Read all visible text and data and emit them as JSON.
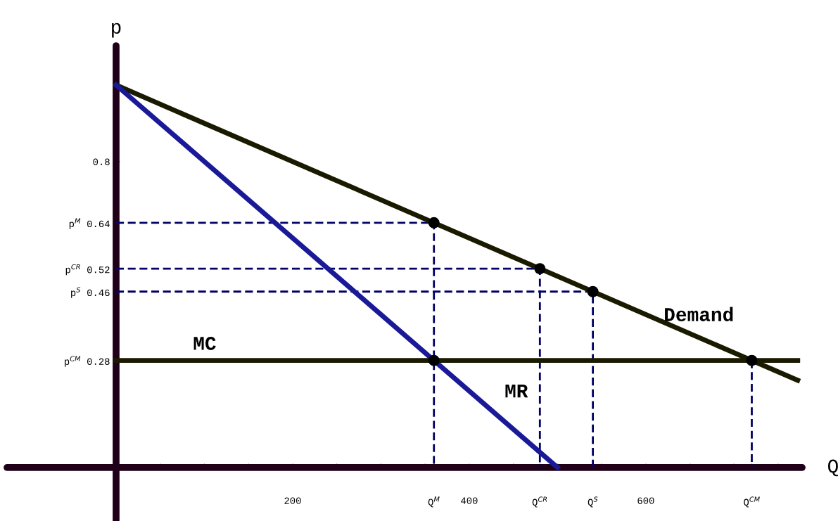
{
  "chart_data": {
    "type": "line",
    "xlabel": "Q",
    "ylabel": "p",
    "xlim": [
      -123.5,
      777
    ],
    "ylim": [
      -0.138,
      1.103
    ],
    "xticks": [
      {
        "value": 50,
        "label": null
      },
      {
        "value": 100,
        "label": null
      },
      {
        "value": 150,
        "label": null
      },
      200,
      {
        "value": 250,
        "label": null
      },
      {
        "value": 300,
        "label": null
      },
      {
        "value": 350,
        "label": null
      },
      400,
      {
        "value": 450,
        "label": null
      },
      {
        "value": 500,
        "label": null
      },
      {
        "value": 550,
        "label": null
      },
      600,
      {
        "value": 650,
        "label": null
      },
      {
        "value": 700,
        "label": null
      },
      {
        "value": 750,
        "label": null
      },
      {
        "value": 360,
        "label": "Q$^{M}$"
      },
      {
        "value": 480,
        "label": "Q$^{CR}$"
      },
      {
        "value": 540,
        "label": "Q$^{S}$"
      },
      {
        "value": 720,
        "label": "Q$^{CM}$"
      }
    ],
    "yticks": [
      {
        "value": 0.28,
        "label": "p$^{CM}$ 0.28"
      },
      {
        "value": 0.46,
        "label": "p$^{S}$ 0.46"
      },
      {
        "value": 0.52,
        "label": "p$^{CR}$ 0.52"
      },
      {
        "value": 0.64,
        "label": "p$^{M}$ 0.64"
      },
      0.8
    ],
    "grid": false,
    "legend": false,
    "series": [
      {
        "type": "line",
        "name": "Demand",
        "x": [
          0,
          772
        ],
        "values": [
          1,
          0.228
        ],
        "color": "#1a1a00",
        "line_style": "solid",
        "marker": "none"
      },
      {
        "type": "line",
        "name": "MR",
        "x": [
          0,
          500
        ],
        "values": [
          1,
          0
        ],
        "color": "#1a1a99",
        "line_style": "solid",
        "marker": "none"
      },
      {
        "type": "line",
        "name": "MC",
        "x": [
          0,
          772
        ],
        "values": [
          0.28,
          0.28
        ],
        "color": "#1a1a00",
        "line_style": "solid",
        "marker": "none"
      },
      {
        "x": [
          0,
          360,
          360
        ],
        "values": [
          0.64,
          0.64,
          0
        ],
        "color": "#000066",
        "line_style": "dashed",
        "marker": "none"
      },
      {
        "x": [
          0,
          480,
          480
        ],
        "values": [
          0.52,
          0.52,
          0
        ],
        "color": "#000066",
        "line_style": "dashed",
        "marker": "none"
      },
      {
        "x": [
          0,
          540,
          540
        ],
        "values": [
          0.46,
          0.46,
          0
        ],
        "color": "#000066",
        "line_style": "dashed",
        "marker": "none"
      },
      {
        "x": [
          720,
          720
        ],
        "values": [
          0.28,
          0
        ],
        "color": "#000066",
        "line_style": "dashed",
        "marker": "none"
      },
      {
        "type": "scatter",
        "x": [
          360,
          480,
          540,
          720,
          360
        ],
        "values": [
          0.64,
          0.52,
          0.46,
          0.28,
          0.28
        ],
        "color": "#000000",
        "marker": "circle"
      }
    ]
  }
}
